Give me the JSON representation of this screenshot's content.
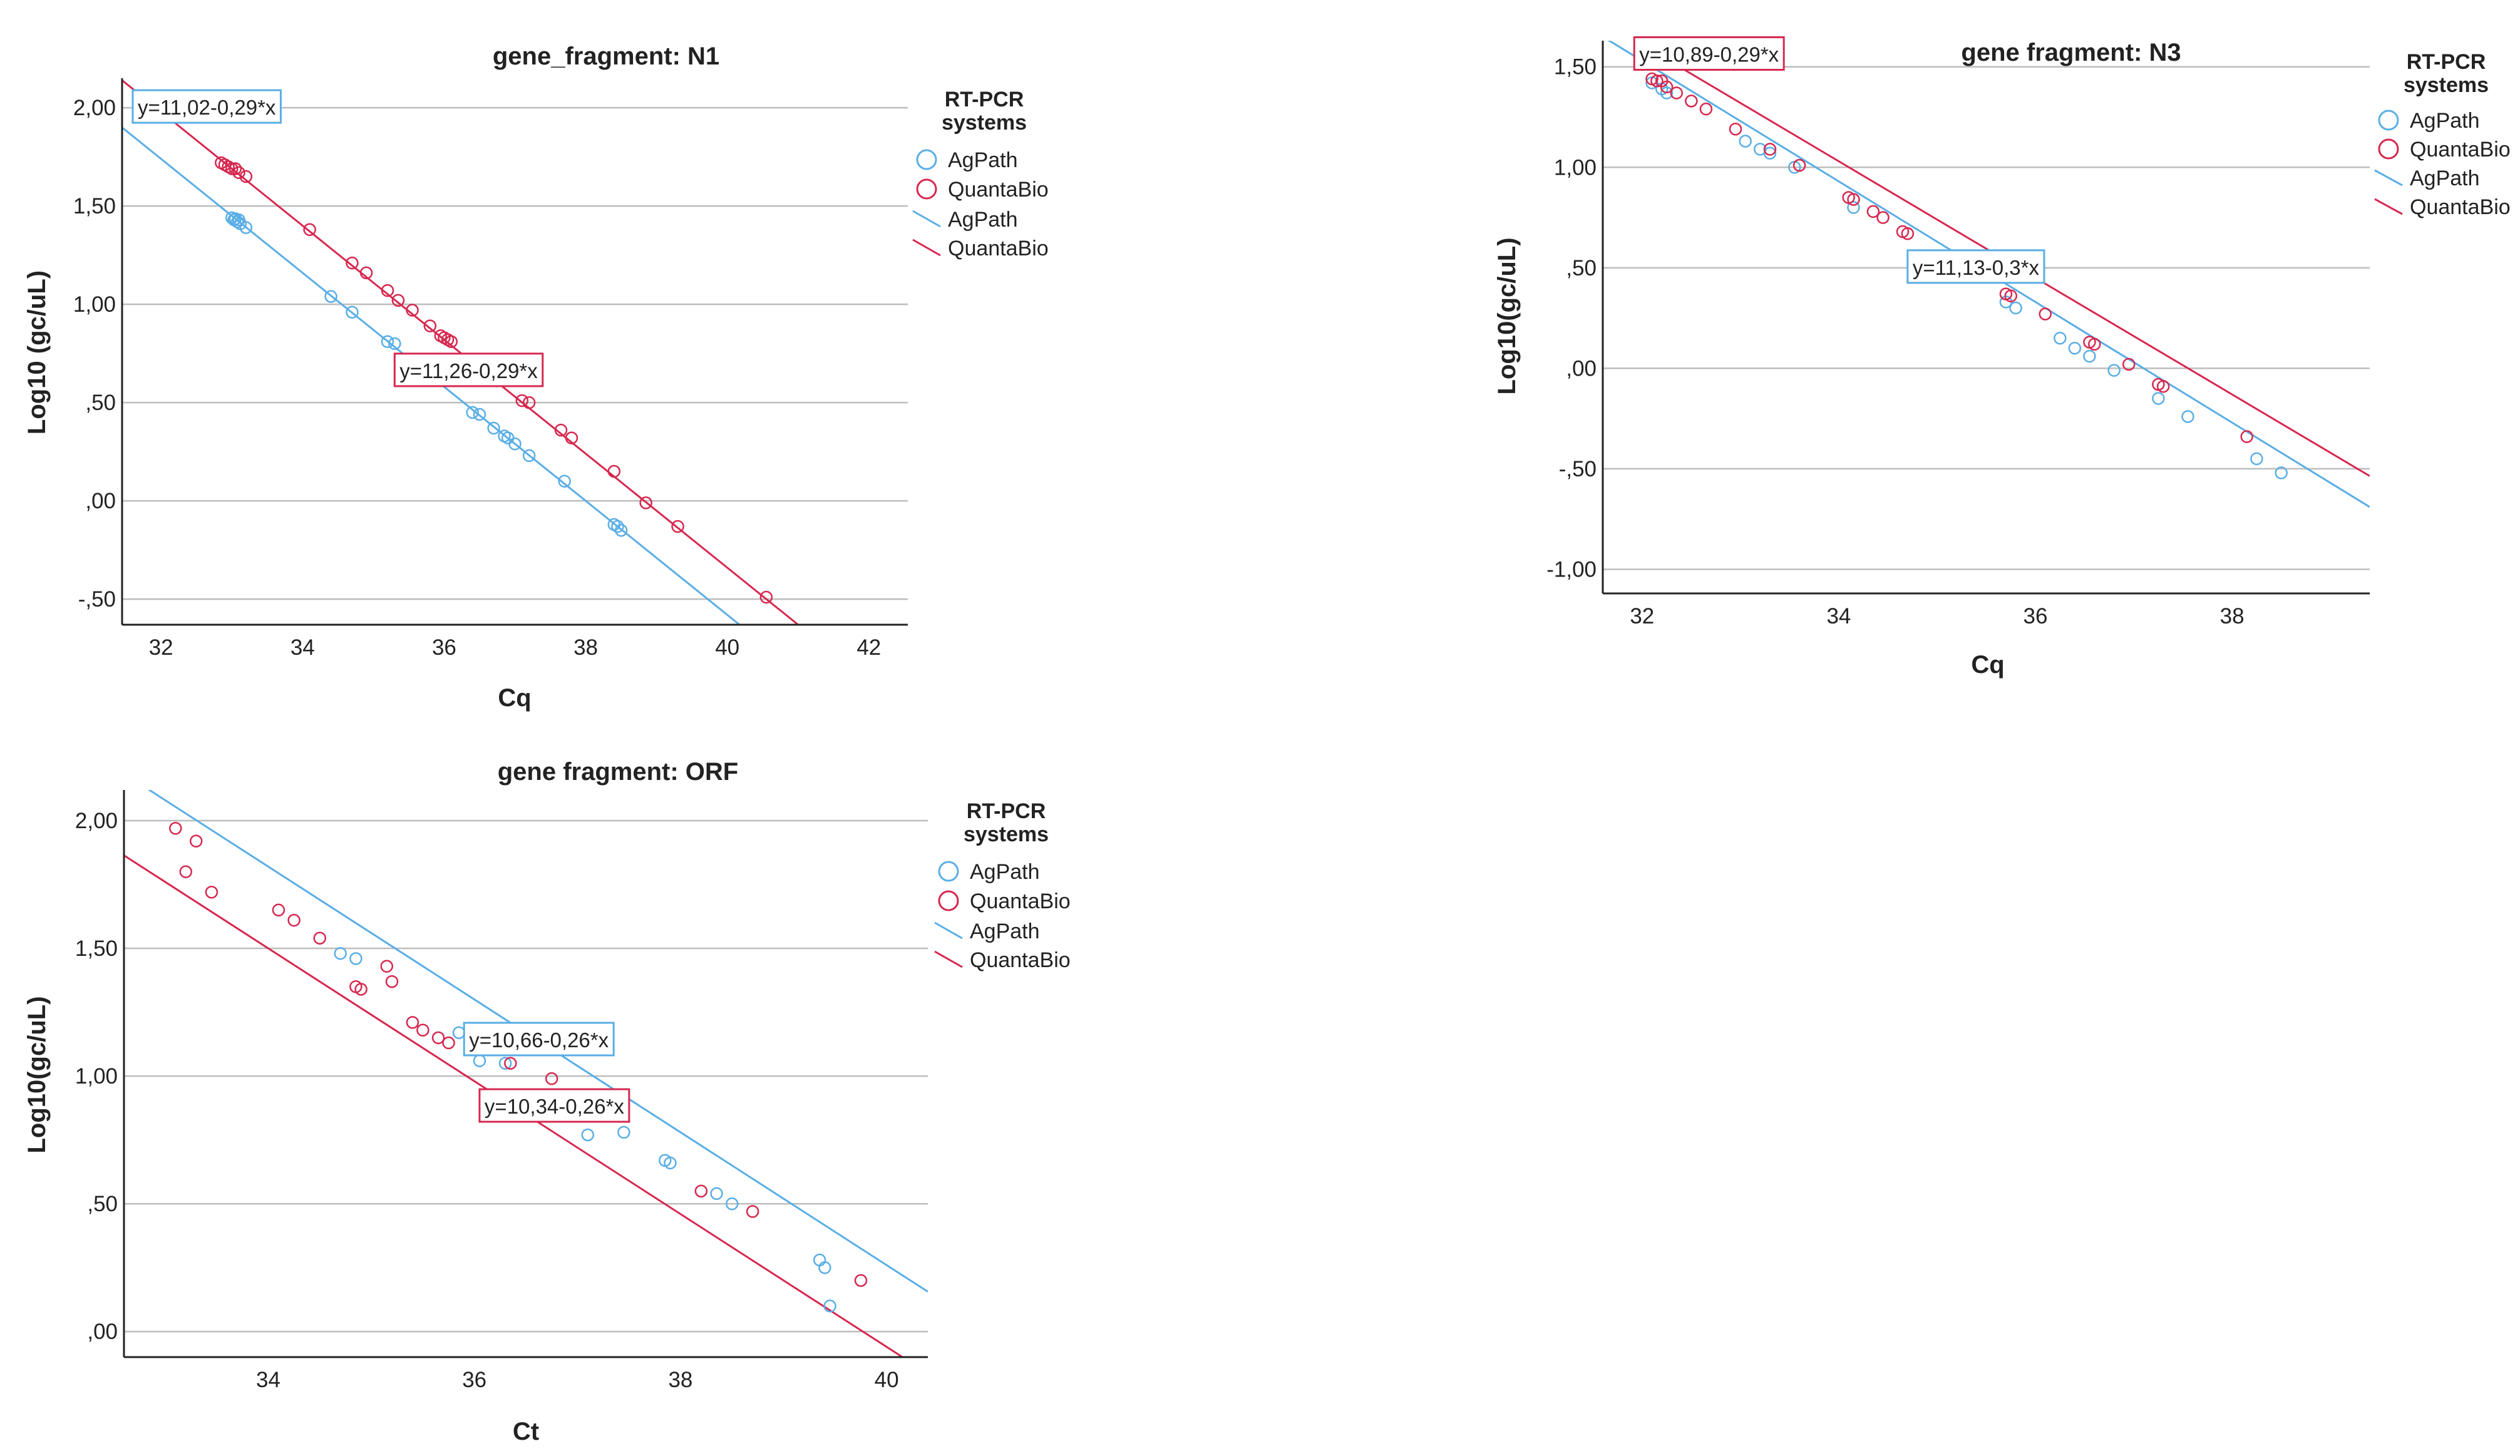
{
  "colors": {
    "agpath": "#5aaee6",
    "quantabio": "#d6284f",
    "grid": "#bdbdbd",
    "axis": "#222222",
    "text": "#222222",
    "background": "#ffffff"
  },
  "legend": {
    "title_line1": "RT-PCR",
    "title_line2": "systems",
    "entries": [
      {
        "label": "AgPath",
        "symbol": "marker",
        "series": "agpath"
      },
      {
        "label": "QuantaBio",
        "symbol": "marker",
        "series": "quantabio"
      },
      {
        "label": "AgPath",
        "symbol": "line",
        "series": "agpath"
      },
      {
        "label": "QuantaBio",
        "symbol": "line",
        "series": "quantabio"
      }
    ]
  },
  "chart_data": [
    {
      "id": "n1",
      "type": "scatter",
      "title": "gene_fragment: N1",
      "xlabel": "Cq",
      "ylabel": "Log10 (gc/uL)",
      "xlim": [
        31.45,
        42.55
      ],
      "ylim": [
        -0.63,
        2.15
      ],
      "xticks": [
        {
          "v": 32,
          "label": "32"
        },
        {
          "v": 34,
          "label": "34"
        },
        {
          "v": 36,
          "label": "36"
        },
        {
          "v": 38,
          "label": "38"
        },
        {
          "v": 40,
          "label": "40"
        },
        {
          "v": 42,
          "label": "42"
        }
      ],
      "yticks": [
        {
          "v": 2.0,
          "label": "2,00"
        },
        {
          "v": 1.5,
          "label": "1,50"
        },
        {
          "v": 1.0,
          "label": "1,00"
        },
        {
          "v": 0.5,
          "label": ",50"
        },
        {
          "v": 0.0,
          "label": ",00"
        },
        {
          "v": -0.5,
          "label": "-,50"
        }
      ],
      "grid": "horizontal",
      "series": [
        {
          "name": "AgPath",
          "key": "agpath",
          "fit": {
            "intercept": 11.02,
            "slope": -0.29,
            "label": "y=11,02-0,29*x",
            "label_x": 31.6,
            "label_y": 2.0
          },
          "x": [
            33.0,
            33.03,
            33.05,
            33.08,
            33.1,
            33.12,
            33.2,
            34.4,
            34.7,
            35.2,
            35.3,
            36.4,
            36.5,
            36.7,
            36.85,
            36.9,
            37.0,
            37.2,
            37.7,
            38.4,
            38.45,
            38.5
          ],
          "y": [
            1.44,
            1.43,
            1.435,
            1.42,
            1.43,
            1.41,
            1.39,
            1.04,
            0.96,
            0.81,
            0.8,
            0.45,
            0.44,
            0.37,
            0.33,
            0.32,
            0.29,
            0.23,
            0.1,
            -0.12,
            -0.13,
            -0.15
          ]
        },
        {
          "name": "QuantaBio",
          "key": "quantabio",
          "fit": {
            "intercept": 11.26,
            "slope": -0.29,
            "label": "y=11,26-0,29*x",
            "label_x": 35.3,
            "label_y": 0.66
          },
          "x": [
            32.85,
            32.9,
            32.95,
            33.0,
            33.05,
            33.1,
            33.2,
            34.1,
            34.7,
            34.9,
            35.2,
            35.35,
            35.55,
            35.8,
            35.95,
            36.0,
            36.05,
            36.1,
            37.1,
            37.2,
            37.65,
            37.8,
            38.4,
            38.85,
            39.3,
            40.55
          ],
          "y": [
            1.72,
            1.71,
            1.7,
            1.69,
            1.69,
            1.67,
            1.65,
            1.38,
            1.21,
            1.16,
            1.07,
            1.02,
            0.97,
            0.89,
            0.84,
            0.83,
            0.82,
            0.81,
            0.51,
            0.5,
            0.36,
            0.32,
            0.15,
            -0.01,
            -0.13,
            -0.49
          ]
        }
      ]
    },
    {
      "id": "n3",
      "type": "scatter",
      "title": "gene fragment: N3",
      "xlabel": "Cq",
      "ylabel": "Log10(gc/uL)",
      "xlim": [
        31.6,
        39.4
      ],
      "ylim": [
        -1.12,
        1.63
      ],
      "xticks": [
        {
          "v": 32,
          "label": "32"
        },
        {
          "v": 34,
          "label": "34"
        },
        {
          "v": 36,
          "label": "36"
        },
        {
          "v": 38,
          "label": "38"
        }
      ],
      "yticks": [
        {
          "v": 1.5,
          "label": "1,50"
        },
        {
          "v": 1.0,
          "label": "1,00"
        },
        {
          "v": 0.5,
          "label": ",50"
        },
        {
          "v": 0.0,
          "label": ",00"
        },
        {
          "v": -0.5,
          "label": "-,50"
        },
        {
          "v": -1.0,
          "label": "-1,00"
        }
      ],
      "grid": "horizontal",
      "series": [
        {
          "name": "AgPath",
          "key": "agpath",
          "fit": {
            "intercept": 11.13,
            "slope": -0.3,
            "label": "y=11,13-0,3*x",
            "label_x": 34.7,
            "label_y": 0.5
          },
          "x": [
            32.1,
            32.2,
            32.25,
            33.05,
            33.2,
            33.3,
            33.55,
            34.15,
            35.7,
            35.8,
            36.25,
            36.4,
            36.55,
            36.8,
            37.25,
            37.55,
            38.25,
            38.5
          ],
          "y": [
            1.42,
            1.39,
            1.37,
            1.13,
            1.09,
            1.07,
            1.0,
            0.8,
            0.33,
            0.3,
            0.15,
            0.1,
            0.06,
            -0.01,
            -0.15,
            -0.24,
            -0.45,
            -0.52
          ]
        },
        {
          "name": "QuantaBio",
          "key": "quantabio",
          "fit": {
            "intercept": 10.89,
            "slope": -0.29,
            "label": "y=10,89-0,29*x",
            "label_x": 31.92,
            "label_y": 1.56
          },
          "x": [
            32.1,
            32.15,
            32.2,
            32.25,
            32.35,
            32.5,
            32.65,
            32.95,
            33.3,
            33.6,
            34.1,
            34.15,
            34.35,
            34.45,
            34.65,
            34.7,
            35.7,
            35.75,
            36.1,
            36.55,
            36.6,
            36.95,
            37.25,
            37.3,
            38.15
          ],
          "y": [
            1.44,
            1.43,
            1.43,
            1.4,
            1.37,
            1.33,
            1.29,
            1.19,
            1.09,
            1.01,
            0.85,
            0.84,
            0.78,
            0.75,
            0.68,
            0.67,
            0.37,
            0.36,
            0.27,
            0.13,
            0.12,
            0.02,
            -0.08,
            -0.09,
            -0.34
          ]
        }
      ]
    },
    {
      "id": "orf",
      "type": "scatter",
      "title": "gene fragment: ORF",
      "xlabel": "Ct",
      "ylabel": "Log10(gc/uL)",
      "xlim": [
        32.6,
        40.4
      ],
      "ylim": [
        -0.1,
        2.12
      ],
      "xticks": [
        {
          "v": 34,
          "label": "34"
        },
        {
          "v": 36,
          "label": "36"
        },
        {
          "v": 38,
          "label": "38"
        },
        {
          "v": 40,
          "label": "40"
        }
      ],
      "yticks": [
        {
          "v": 2.0,
          "label": "2,00"
        },
        {
          "v": 1.5,
          "label": "1,50"
        },
        {
          "v": 1.0,
          "label": "1,00"
        },
        {
          "v": 0.5,
          "label": ",50"
        },
        {
          "v": 0.0,
          "label": ",00"
        }
      ],
      "grid": "horizontal",
      "series": [
        {
          "name": "AgPath",
          "key": "agpath",
          "fit": {
            "intercept": 10.66,
            "slope": -0.26,
            "label": "y=10,66-0,26*x",
            "label_x": 35.9,
            "label_y": 1.14
          },
          "x": [
            34.7,
            34.85,
            35.85,
            36.05,
            36.3,
            37.1,
            37.45,
            37.85,
            37.9,
            38.35,
            38.5,
            39.35,
            39.4,
            39.45
          ],
          "y": [
            1.48,
            1.46,
            1.17,
            1.06,
            1.05,
            0.77,
            0.78,
            0.67,
            0.66,
            0.54,
            0.5,
            0.28,
            0.25,
            0.1
          ]
        },
        {
          "name": "QuantaBio",
          "key": "quantabio",
          "fit": {
            "intercept": 10.34,
            "slope": -0.26,
            "label": "y=10,34-0,26*x",
            "label_x": 36.05,
            "label_y": 0.88
          },
          "x": [
            33.1,
            33.2,
            33.3,
            33.45,
            34.1,
            34.25,
            34.5,
            34.85,
            34.9,
            35.15,
            35.2,
            35.4,
            35.5,
            35.65,
            35.75,
            36.35,
            36.75,
            38.2,
            38.7,
            39.75
          ],
          "y": [
            1.97,
            1.8,
            1.92,
            1.72,
            1.65,
            1.61,
            1.54,
            1.35,
            1.34,
            1.43,
            1.37,
            1.21,
            1.18,
            1.15,
            1.13,
            1.05,
            0.99,
            0.55,
            0.47,
            0.2
          ]
        }
      ]
    }
  ]
}
